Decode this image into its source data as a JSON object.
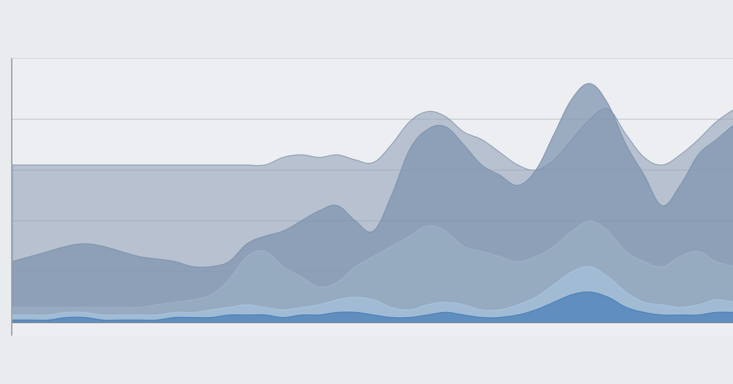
{
  "window": {
    "title": "",
    "subtitle": ""
  },
  "chart_data": {
    "type": "area",
    "title": "",
    "xlabel": "",
    "ylabel": "",
    "x": [
      0,
      1,
      2,
      3,
      4,
      5,
      6,
      7,
      8,
      9,
      10,
      11,
      12,
      13,
      14,
      15,
      16,
      17,
      18,
      19,
      20,
      21,
      22,
      23,
      24,
      25,
      26,
      27,
      28,
      29,
      30,
      31,
      32,
      33,
      34,
      35,
      36,
      37,
      38,
      39,
      40
    ],
    "ylim": [
      0,
      100
    ],
    "grid": true,
    "series": [
      {
        "values": [
          62,
          62,
          62,
          62,
          62,
          62,
          62,
          62,
          62,
          62,
          62,
          62,
          62,
          62,
          62,
          65,
          66,
          65,
          66,
          64,
          63,
          70,
          79,
          83,
          81,
          75,
          72,
          67,
          62,
          60,
          64,
          72,
          80,
          84,
          74,
          65,
          62,
          66,
          72,
          79,
          84
        ],
        "color": "#8c9db2"
      },
      {
        "values": [
          24,
          26,
          28,
          30,
          31,
          30,
          28,
          26,
          25,
          24,
          22,
          22,
          24,
          31,
          34,
          36,
          40,
          44,
          46,
          40,
          36,
          50,
          68,
          76,
          77,
          70,
          62,
          58,
          54,
          60,
          74,
          88,
          94,
          86,
          70,
          58,
          46,
          54,
          66,
          72,
          78
        ],
        "color": "#7d93ad"
      },
      {
        "values": [
          6,
          6,
          6,
          6,
          6,
          6,
          6,
          6,
          7,
          8,
          9,
          11,
          17,
          26,
          28,
          22,
          18,
          14,
          16,
          22,
          26,
          30,
          34,
          38,
          36,
          30,
          28,
          26,
          24,
          26,
          30,
          36,
          40,
          36,
          28,
          24,
          22,
          26,
          28,
          24,
          22
        ],
        "color": "#9cb0c6"
      },
      {
        "values": [
          3,
          3,
          3,
          4,
          4,
          3,
          3,
          3,
          3,
          4,
          4,
          5,
          6,
          7,
          6,
          5,
          6,
          7,
          9,
          10,
          9,
          6,
          5,
          7,
          8,
          7,
          5,
          5,
          7,
          10,
          15,
          20,
          22,
          18,
          12,
          8,
          7,
          6,
          7,
          9,
          8
        ],
        "color": "#a7c4de"
      },
      {
        "values": [
          1,
          1,
          1,
          2,
          2,
          1,
          1,
          1,
          1,
          2,
          2,
          2,
          3,
          3,
          3,
          2,
          3,
          3,
          4,
          4,
          3,
          2,
          2,
          3,
          4,
          3,
          2,
          2,
          3,
          5,
          8,
          11,
          12,
          10,
          6,
          4,
          3,
          3,
          3,
          4,
          4
        ],
        "color": "#4a7fb8"
      }
    ]
  }
}
